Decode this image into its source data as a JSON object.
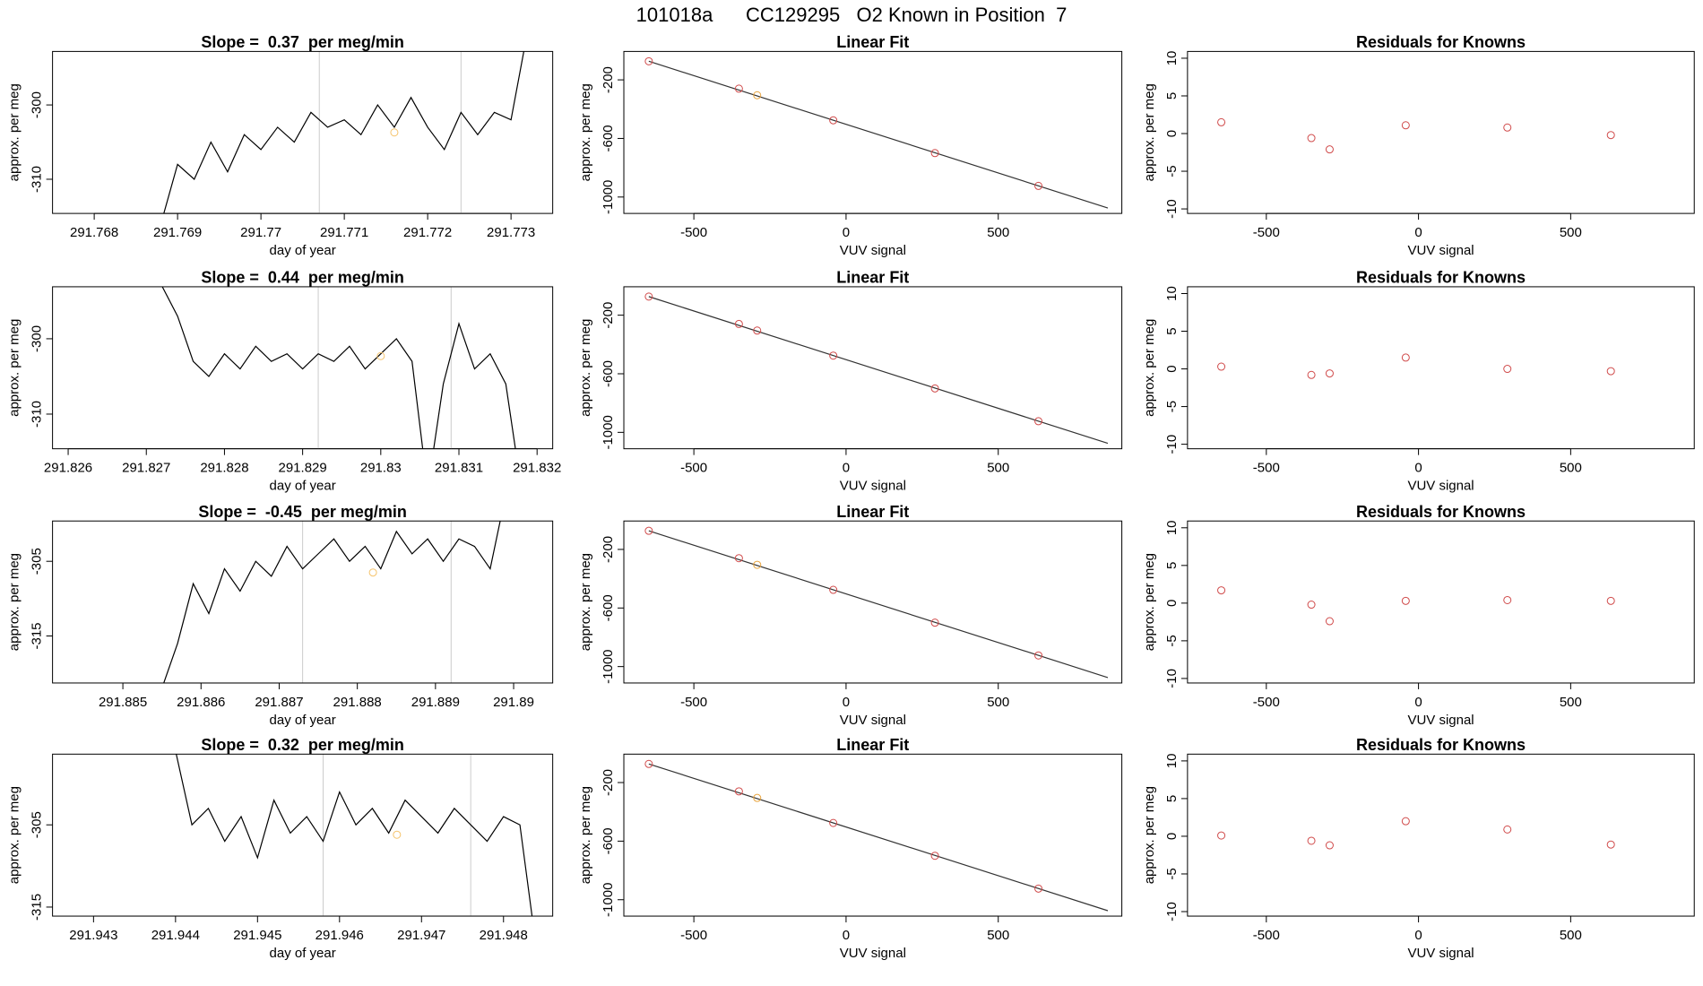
{
  "title": "101018a      CC129295   O2 Known in Position  7",
  "chart_data": [
    {
      "type": "line",
      "title": "Slope =  0.37  per meg/min",
      "xlabel": "day of year",
      "ylabel": "approx. per meg",
      "color": "#000000",
      "x": [
        291.7688,
        291.769,
        291.7692,
        291.7694,
        291.7696,
        291.7698,
        291.77,
        291.7702,
        291.7704,
        291.7706,
        291.7708,
        291.771,
        291.7712,
        291.7714,
        291.7716,
        291.7718,
        291.772,
        291.7722,
        291.7724,
        291.7726,
        291.7728,
        291.773,
        291.7732
      ],
      "values": [
        -316,
        -308,
        -310,
        -305,
        -309,
        -304,
        -306,
        -303,
        -305,
        -301,
        -303,
        -302,
        -304,
        -300,
        -303,
        -299,
        -303,
        -306,
        -301,
        -304,
        -301,
        -302,
        -290
      ],
      "xlim": [
        291.7675,
        291.7735
      ],
      "ylim": [
        -314.6,
        -292.8
      ],
      "xticks": [
        291.768,
        291.769,
        291.77,
        291.771,
        291.772,
        291.773
      ],
      "yticks": [
        -310,
        -300
      ],
      "vlines": [
        291.7707,
        291.7724
      ],
      "vline_color": "#cccccc",
      "highlight": {
        "x": 291.7716,
        "y": -303.7
      },
      "highlight_color": "#f5c36b"
    },
    {
      "type": "scatter",
      "title": "Linear Fit",
      "xlabel": "VUV signal",
      "ylabel": "approx. per meg",
      "x": [
        -648,
        -352,
        -292,
        -42,
        292,
        632
      ],
      "values": [
        -73,
        -260,
        -305,
        -476,
        -700,
        -924
      ],
      "colors": [
        "#d04a4a",
        "#d04a4a",
        "#e8a33c",
        "#d04a4a",
        "#d04a4a",
        "#d04a4a"
      ],
      "fit": {
        "x": [
          -648,
          860
        ],
        "values": [
          -73,
          -1075
        ]
      },
      "fit_color": "#333333",
      "xlim": [
        -730,
        906
      ],
      "ylim": [
        -1112,
        -6
      ],
      "xticks": [
        -500,
        0,
        500
      ],
      "yticks": [
        -1000,
        -600,
        -200
      ]
    },
    {
      "type": "scatter",
      "title": "Residuals for Knowns",
      "xlabel": "VUV signal",
      "ylabel": "approx. per meg",
      "color": "#d04a4a",
      "x": [
        -648,
        -352,
        -292,
        -42,
        292,
        632
      ],
      "values": [
        1.5,
        -0.6,
        -2.1,
        1.1,
        0.8,
        -0.2
      ],
      "xlim": [
        -759,
        906
      ],
      "ylim": [
        -10.6,
        10.9
      ],
      "xticks": [
        -500,
        0,
        500
      ],
      "yticks": [
        -10,
        -5,
        0,
        5,
        10
      ]
    },
    {
      "type": "line",
      "title": "Slope =  0.44  per meg/min",
      "xlabel": "day of year",
      "ylabel": "approx. per meg",
      "color": "#000000",
      "x": [
        291.8272,
        291.8274,
        291.8276,
        291.8278,
        291.828,
        291.8282,
        291.8284,
        291.8286,
        291.8288,
        291.829,
        291.8292,
        291.8294,
        291.8296,
        291.8298,
        291.83,
        291.8302,
        291.8304,
        291.8306,
        291.8308,
        291.831,
        291.8312,
        291.8314,
        291.8316,
        291.8318
      ],
      "values": [
        -293,
        -297,
        -303,
        -305,
        -302,
        -304,
        -301,
        -303,
        -302,
        -304,
        -302,
        -303,
        -301,
        -304,
        -302,
        -300,
        -303,
        -320,
        -306,
        -298,
        -304,
        -302,
        -306,
        -320
      ],
      "xlim": [
        291.8258,
        291.8322
      ],
      "ylim": [
        -314.6,
        -293.1
      ],
      "xticks": [
        291.826,
        291.827,
        291.828,
        291.829,
        291.83,
        291.831,
        291.832
      ],
      "yticks": [
        -310,
        -300
      ],
      "vlines": [
        291.8292,
        291.8309
      ],
      "vline_color": "#cccccc",
      "highlight": {
        "x": 291.83,
        "y": -302.3
      },
      "highlight_color": "#f5c36b"
    },
    {
      "type": "scatter",
      "title": "Linear Fit",
      "xlabel": "VUV signal",
      "ylabel": "approx. per meg",
      "x": [
        -648,
        -352,
        -292,
        -42,
        292,
        632
      ],
      "values": [
        -73,
        -260,
        -305,
        -476,
        -700,
        -924
      ],
      "colors": [
        "#d04a4a",
        "#d04a4a",
        "#d04a4a",
        "#d04a4a",
        "#d04a4a",
        "#d04a4a"
      ],
      "fit": {
        "x": [
          -648,
          860
        ],
        "values": [
          -73,
          -1075
        ]
      },
      "fit_color": "#333333",
      "xlim": [
        -730,
        906
      ],
      "ylim": [
        -1112,
        -6
      ],
      "xticks": [
        -500,
        0,
        500
      ],
      "yticks": [
        -1000,
        -600,
        -200
      ]
    },
    {
      "type": "scatter",
      "title": "Residuals for Knowns",
      "xlabel": "VUV signal",
      "ylabel": "approx. per meg",
      "color": "#d04a4a",
      "x": [
        -648,
        -352,
        -292,
        -42,
        292,
        632
      ],
      "values": [
        0.3,
        -0.8,
        -0.6,
        1.5,
        0,
        -0.3
      ],
      "xlim": [
        -759,
        906
      ],
      "ylim": [
        -10.6,
        10.9
      ],
      "xticks": [
        -500,
        0,
        500
      ],
      "yticks": [
        -10,
        -5,
        0,
        5,
        10
      ]
    },
    {
      "type": "line",
      "title": "Slope =  -0.45  per meg/min",
      "xlabel": "day of year",
      "ylabel": "approx. per meg",
      "color": "#000000",
      "x": [
        291.8855,
        291.8857,
        291.8859,
        291.8861,
        291.8863,
        291.8865,
        291.8867,
        291.8869,
        291.8871,
        291.8873,
        291.8875,
        291.8877,
        291.8879,
        291.8881,
        291.8883,
        291.8885,
        291.8887,
        291.8889,
        291.8891,
        291.8893,
        291.8895,
        291.8897,
        291.8899
      ],
      "values": [
        -322,
        -316,
        -308,
        -312,
        -306,
        -309,
        -305,
        -307,
        -303,
        -306,
        -304,
        -302,
        -305,
        -303,
        -306,
        -301,
        -304,
        -302,
        -305,
        -302,
        -303,
        -306,
        -296
      ],
      "xlim": [
        291.8841,
        291.8905
      ],
      "ylim": [
        -321.3,
        -299.6
      ],
      "xticks": [
        291.885,
        291.886,
        291.887,
        291.888,
        291.889,
        291.89
      ],
      "yticks": [
        -315,
        -305
      ],
      "vlines": [
        291.8873,
        291.8892
      ],
      "vline_color": "#cccccc",
      "highlight": {
        "x": 291.8882,
        "y": -306.5
      },
      "highlight_color": "#f5c36b"
    },
    {
      "type": "scatter",
      "title": "Linear Fit",
      "xlabel": "VUV signal",
      "ylabel": "approx. per meg",
      "x": [
        -648,
        -352,
        -292,
        -42,
        292,
        632
      ],
      "values": [
        -73,
        -260,
        -305,
        -476,
        -700,
        -924
      ],
      "colors": [
        "#d04a4a",
        "#d04a4a",
        "#e8a33c",
        "#d04a4a",
        "#d04a4a",
        "#d04a4a"
      ],
      "fit": {
        "x": [
          -648,
          860
        ],
        "values": [
          -73,
          -1075
        ]
      },
      "fit_color": "#333333",
      "xlim": [
        -730,
        906
      ],
      "ylim": [
        -1112,
        -6
      ],
      "xticks": [
        -500,
        0,
        500
      ],
      "yticks": [
        -1000,
        -600,
        -200
      ]
    },
    {
      "type": "scatter",
      "title": "Residuals for Knowns",
      "xlabel": "VUV signal",
      "ylabel": "approx. per meg",
      "color": "#d04a4a",
      "x": [
        -648,
        -352,
        -292,
        -42,
        292,
        632
      ],
      "values": [
        1.7,
        -0.2,
        -2.4,
        0.3,
        0.4,
        0.3
      ],
      "xlim": [
        -759,
        906
      ],
      "ylim": [
        -10.6,
        10.9
      ],
      "xticks": [
        -500,
        0,
        500
      ],
      "yticks": [
        -10,
        -5,
        0,
        5,
        10
      ]
    },
    {
      "type": "line",
      "title": "Slope =  0.32  per meg/min",
      "xlabel": "day of year",
      "ylabel": "approx. per meg",
      "color": "#000000",
      "x": [
        291.944,
        291.9442,
        291.9444,
        291.9446,
        291.9448,
        291.945,
        291.9452,
        291.9454,
        291.9456,
        291.9458,
        291.946,
        291.9462,
        291.9464,
        291.9466,
        291.9468,
        291.947,
        291.9472,
        291.9474,
        291.9476,
        291.9478,
        291.948,
        291.9482,
        291.9484
      ],
      "values": [
        -296,
        -305,
        -303,
        -307,
        -304,
        -309,
        -302,
        -306,
        -304,
        -307,
        -301,
        -305,
        -303,
        -306,
        -302,
        -304,
        -306,
        -303,
        -305,
        -307,
        -304,
        -305,
        -320
      ],
      "xlim": [
        291.9425,
        291.9486
      ],
      "ylim": [
        -316.1,
        -296.4
      ],
      "xticks": [
        291.943,
        291.944,
        291.945,
        291.946,
        291.947,
        291.948
      ],
      "yticks": [
        -315,
        -305
      ],
      "vlines": [
        291.9458,
        291.9476
      ],
      "vline_color": "#cccccc",
      "highlight": {
        "x": 291.9467,
        "y": -306.2
      },
      "highlight_color": "#f5c36b"
    },
    {
      "type": "scatter",
      "title": "Linear Fit",
      "xlabel": "VUV signal",
      "ylabel": "approx. per meg",
      "x": [
        -648,
        -352,
        -292,
        -42,
        292,
        632
      ],
      "values": [
        -73,
        -260,
        -305,
        -476,
        -700,
        -924
      ],
      "colors": [
        "#d04a4a",
        "#d04a4a",
        "#e8a33c",
        "#d04a4a",
        "#d04a4a",
        "#d04a4a"
      ],
      "fit": {
        "x": [
          -648,
          860
        ],
        "values": [
          -73,
          -1075
        ]
      },
      "fit_color": "#333333",
      "xlim": [
        -730,
        906
      ],
      "ylim": [
        -1112,
        -6
      ],
      "xticks": [
        -500,
        0,
        500
      ],
      "yticks": [
        -1000,
        -600,
        -200
      ]
    },
    {
      "type": "scatter",
      "title": "Residuals for Knowns",
      "xlabel": "VUV signal",
      "ylabel": "approx. per meg",
      "color": "#d04a4a",
      "x": [
        -648,
        -352,
        -292,
        -42,
        292,
        632
      ],
      "values": [
        0.1,
        -0.6,
        -1.2,
        2.0,
        0.9,
        -1.1
      ],
      "xlim": [
        -759,
        906
      ],
      "ylim": [
        -10.6,
        10.9
      ],
      "xticks": [
        -500,
        0,
        500
      ],
      "yticks": [
        -10,
        -5,
        0,
        5,
        10
      ]
    }
  ]
}
